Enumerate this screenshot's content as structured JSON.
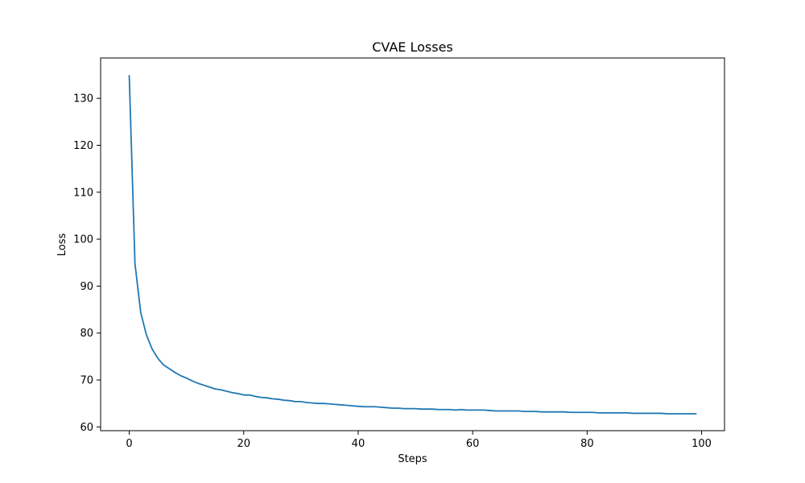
{
  "chart_data": {
    "type": "line",
    "title": "CVAE Losses",
    "xlabel": "Steps",
    "ylabel": "Loss",
    "xlim": [
      -5,
      104
    ],
    "ylim": [
      59.2,
      138.6
    ],
    "xticks": [
      0,
      20,
      40,
      60,
      80,
      100
    ],
    "yticks": [
      60,
      70,
      80,
      90,
      100,
      110,
      120,
      130
    ],
    "grid": false,
    "series": [
      {
        "color": "#1f77b4",
        "x": [
          0,
          1,
          2,
          3,
          4,
          5,
          6,
          7,
          8,
          9,
          10,
          11,
          12,
          13,
          14,
          15,
          16,
          17,
          18,
          19,
          20,
          21,
          22,
          23,
          24,
          25,
          26,
          27,
          28,
          29,
          30,
          31,
          32,
          33,
          34,
          35,
          36,
          37,
          38,
          39,
          40,
          41,
          42,
          43,
          44,
          45,
          46,
          47,
          48,
          49,
          50,
          51,
          52,
          53,
          54,
          55,
          56,
          57,
          58,
          59,
          60,
          61,
          62,
          63,
          64,
          65,
          66,
          67,
          68,
          69,
          70,
          71,
          72,
          73,
          74,
          75,
          76,
          77,
          78,
          79,
          80,
          81,
          82,
          83,
          84,
          85,
          86,
          87,
          88,
          89,
          90,
          91,
          92,
          93,
          94,
          95,
          96,
          97,
          98,
          99
        ],
        "values": [
          134.8,
          94.8,
          84.4,
          79.6,
          76.6,
          74.6,
          73.2,
          72.4,
          71.6,
          70.9,
          70.4,
          69.8,
          69.3,
          68.9,
          68.5,
          68.1,
          67.9,
          67.6,
          67.3,
          67.1,
          66.8,
          66.8,
          66.5,
          66.3,
          66.2,
          66.0,
          65.9,
          65.7,
          65.6,
          65.4,
          65.4,
          65.2,
          65.1,
          65.0,
          65.0,
          64.9,
          64.8,
          64.7,
          64.6,
          64.5,
          64.4,
          64.3,
          64.3,
          64.3,
          64.2,
          64.1,
          64.0,
          64.0,
          63.9,
          63.9,
          63.9,
          63.8,
          63.8,
          63.8,
          63.7,
          63.7,
          63.7,
          63.6,
          63.7,
          63.6,
          63.6,
          63.6,
          63.6,
          63.5,
          63.4,
          63.4,
          63.4,
          63.4,
          63.4,
          63.3,
          63.3,
          63.3,
          63.2,
          63.2,
          63.2,
          63.2,
          63.2,
          63.1,
          63.1,
          63.1,
          63.1,
          63.1,
          63.0,
          63.0,
          63.0,
          63.0,
          63.0,
          63.0,
          62.9,
          62.9,
          62.9,
          62.9,
          62.9,
          62.9,
          62.8,
          62.8,
          62.8,
          62.8,
          62.8,
          62.8
        ]
      }
    ]
  }
}
